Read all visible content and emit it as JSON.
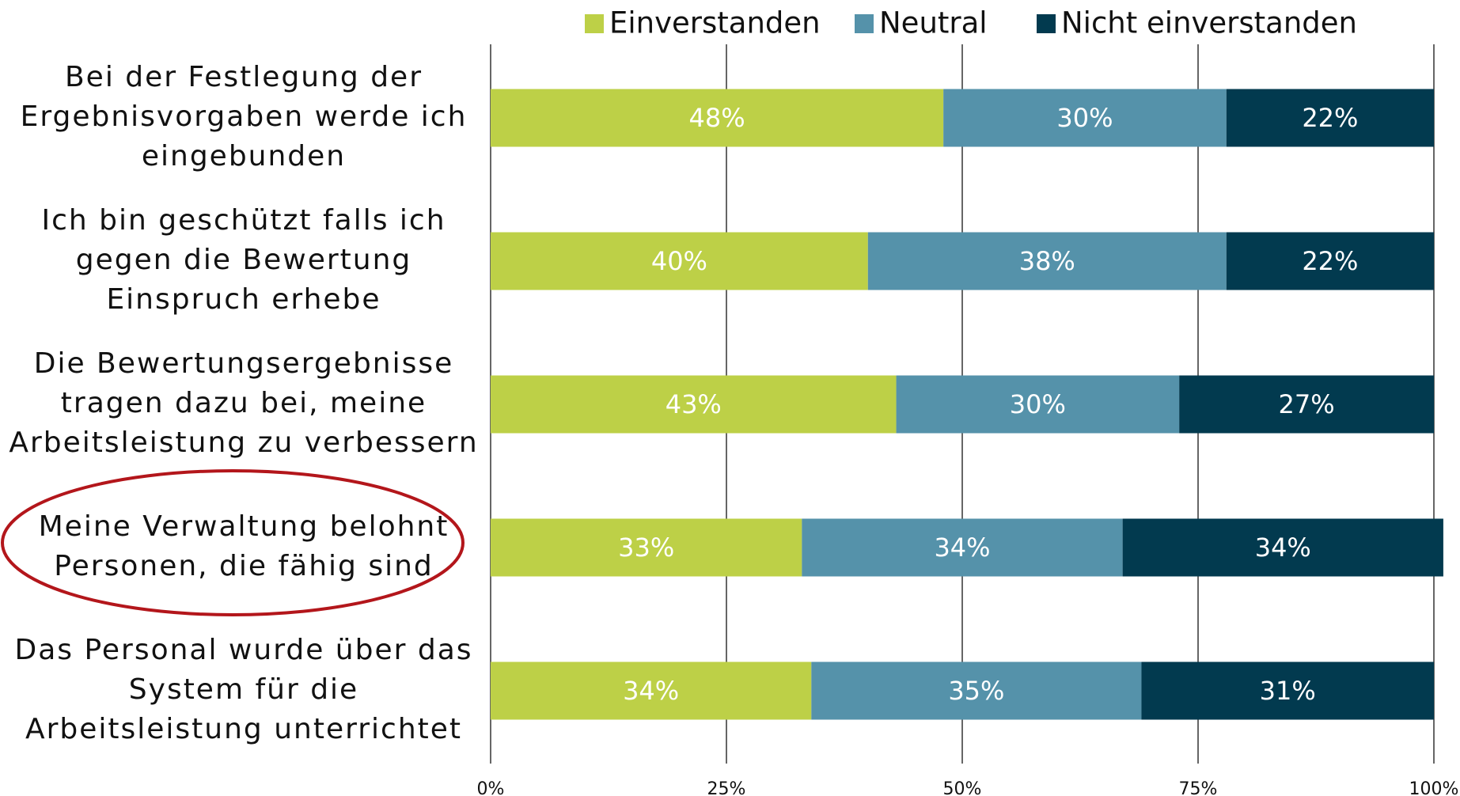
{
  "chart_data": {
    "type": "stacked_barh",
    "categories": [
      [
        "Bei der Festlegung der",
        "Ergebnisvorgaben werde ich",
        "eingebunden"
      ],
      [
        "Ich bin geschützt falls ich",
        "gegen die Bewertung",
        "Einspruch erhebe"
      ],
      [
        "Die Bewertungsergebnisse",
        "tragen dazu bei, meine",
        "Arbeitsleistung zu verbessern"
      ],
      [
        "Meine Verwaltung belohnt",
        "Personen, die fähig sind"
      ],
      [
        "Das Personal wurde über das",
        "System für die",
        "Arbeitsleistung  unterrichtet"
      ]
    ],
    "series": [
      {
        "name": "Einverstanden",
        "color": "#bdd047",
        "values": [
          48,
          40,
          43,
          33,
          34
        ],
        "value_labels": [
          "48%",
          "40%",
          "43%",
          "33%",
          "34%"
        ]
      },
      {
        "name": "Neutral",
        "color": "#5592aa",
        "values": [
          30,
          38,
          30,
          34,
          35
        ],
        "value_labels": [
          "30%",
          "38%",
          "30%",
          "34%",
          "35%"
        ]
      },
      {
        "name": "Nicht einverstanden",
        "color": "#023a4f",
        "values": [
          22,
          22,
          27,
          34,
          31
        ],
        "value_labels": [
          "22%",
          "22%",
          "27%",
          "34%",
          "31%"
        ]
      }
    ],
    "xlim": [
      0,
      100
    ],
    "xticks": [
      {
        "value": 0,
        "label": "0%"
      },
      {
        "value": 25,
        "label": "25%"
      },
      {
        "value": 50,
        "label": "50%"
      },
      {
        "value": 75,
        "label": "75%"
      },
      {
        "value": 100,
        "label": "100%"
      }
    ],
    "grid": true,
    "legend": "top"
  }
}
